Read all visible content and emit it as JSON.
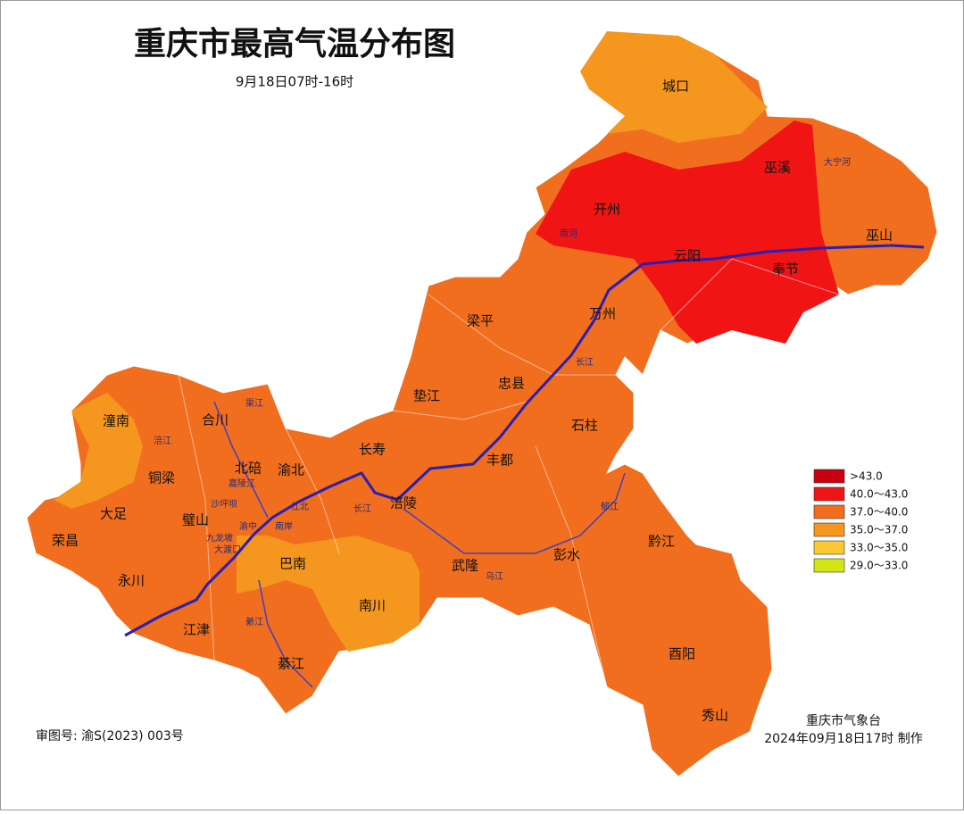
{
  "title": "重庆市最高气温分布图",
  "subtitle": "9月18日07时-16时",
  "districts": [
    "城口",
    "巫溪",
    "开州",
    "云阳",
    "奉节",
    "巫山",
    "万州",
    "梁平",
    "忠县",
    "石柱",
    "垫江",
    "长寿",
    "丰都",
    "渝北",
    "北碚",
    "合川",
    "潼南",
    "铜梁",
    "大足",
    "璧山",
    "荣昌",
    "永川",
    "江津",
    "巴南",
    "南川",
    "綦江",
    "涪陵",
    "武隆",
    "彭水",
    "黔江",
    "酉阳",
    "秀山"
  ],
  "small_labels": [
    "大宁河",
    "南河",
    "长江",
    "长江",
    "乌江",
    "郁江",
    "渠江",
    "涪江",
    "嘉陵江",
    "沙坪坝",
    "江北",
    "南岸",
    "九龙坡",
    "大渡口",
    "渝中",
    "綦江"
  ],
  "legend": [
    {
      "label": ">43.0",
      "color": "#c8000f"
    },
    {
      "label": "40.0～43.0",
      "color": "#f01414"
    },
    {
      "label": "37.0～40.0",
      "color": "#f06e1e"
    },
    {
      "label": "35.0～37.0",
      "color": "#f5961e"
    },
    {
      "label": "33.0～35.0",
      "color": "#fac832"
    },
    {
      "label": "29.0～33.0",
      "color": "#d2e614"
    }
  ],
  "footer": {
    "approval": "审图号: 渝S(2023) 003号",
    "agency": "重庆市气象台",
    "made": "2024年09月18日17时 制作"
  }
}
